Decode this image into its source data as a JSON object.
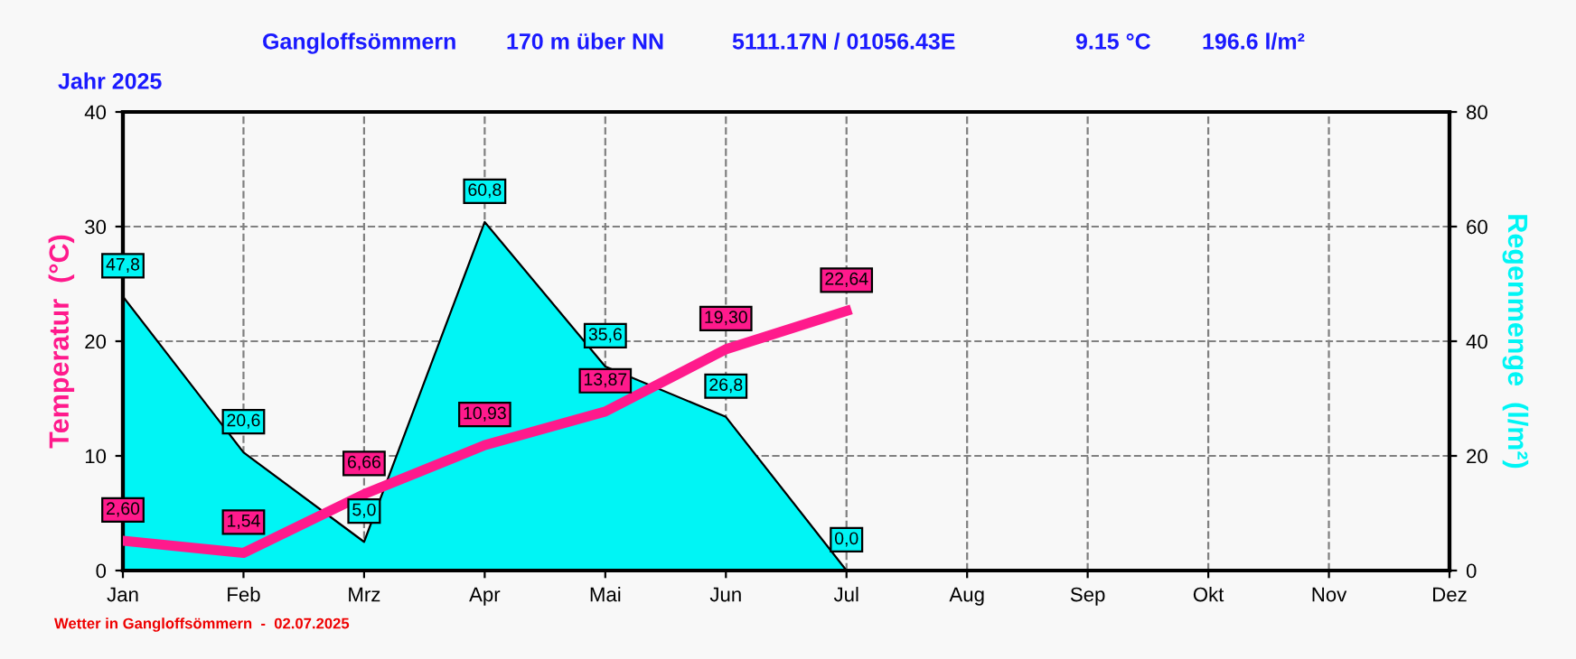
{
  "chart_data": {
    "type": "line",
    "title": "Gangloffsömmern",
    "subtitle": "Jahr 2025",
    "annotations": [
      "170 m über NN",
      "5111.17N / 01056.43E",
      "9.15 °C",
      "196.6 l/m²",
      "Wetter in Gangloffsömmern  -  02.07.2025"
    ],
    "ylabel": "Temperatur  (°C)",
    "y2label": "Regenmenge  (l/m²)",
    "categories": [
      "Jan",
      "Feb",
      "Mrz",
      "Apr",
      "Mai",
      "Jun",
      "Jul",
      "Aug",
      "Sep",
      "Okt",
      "Nov",
      "Dez"
    ],
    "series": [
      {
        "type": "area",
        "axis": "y2",
        "color": "#00f5f5",
        "values": [
          47.8,
          20.6,
          5.0,
          60.8,
          35.6,
          26.8,
          0.0,
          null,
          null,
          null,
          null,
          null
        ],
        "value_labels": [
          "47,8",
          "20,6",
          "5,0",
          "60,8",
          "35,6",
          "26,8",
          "0,0",
          null,
          null,
          null,
          null,
          null
        ]
      },
      {
        "color": "#ff1a8c",
        "values": [
          2.6,
          1.54,
          6.66,
          10.93,
          13.87,
          19.3,
          22.64,
          null,
          null,
          null,
          null,
          null
        ],
        "value_labels": [
          "2,60",
          "1,54",
          "6,66",
          "10,93",
          "13,87",
          "19,30",
          "22,64",
          null,
          null,
          null,
          null,
          null
        ]
      }
    ],
    "ylim": [
      0,
      40
    ],
    "yticks": [
      0,
      10,
      20,
      30,
      40
    ],
    "y2lim": [
      0,
      80
    ],
    "y2ticks": [
      0,
      20,
      40,
      60,
      80
    ],
    "grid": true,
    "legend": false,
    "marker": "none",
    "line_style": "solid"
  }
}
